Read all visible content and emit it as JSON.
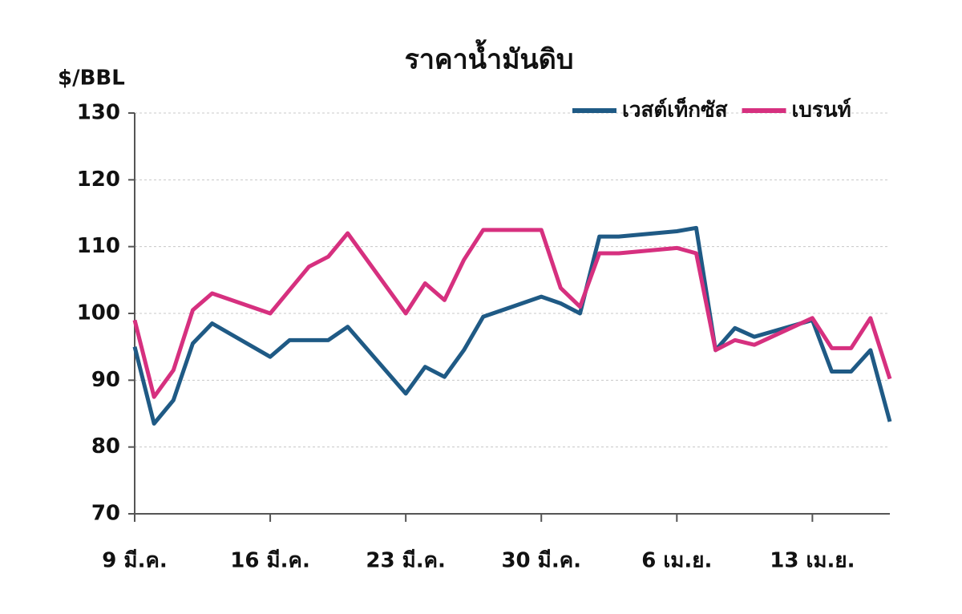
{
  "chart_data": {
    "type": "line",
    "title": "ราคาน้ำมันดิบ",
    "y_label": "$/BBL",
    "x": [
      0,
      1,
      2,
      3,
      4,
      7,
      8,
      9,
      10,
      11,
      14,
      15,
      16,
      17,
      18,
      21,
      22,
      23,
      24,
      25,
      28,
      29,
      30,
      31,
      32,
      35,
      36,
      37,
      38,
      39
    ],
    "xlim": [
      0,
      39
    ],
    "xticks": [
      {
        "value": 0,
        "label": "9 มี.ค."
      },
      {
        "value": 7,
        "label": "16 มี.ค."
      },
      {
        "value": 14,
        "label": "23 มี.ค."
      },
      {
        "value": 21,
        "label": "30 มี.ค."
      },
      {
        "value": 28,
        "label": "6 เม.ย."
      },
      {
        "value": 35,
        "label": "13 เม.ย."
      }
    ],
    "ylim": [
      70,
      130
    ],
    "yticks": [
      70,
      80,
      90,
      100,
      110,
      120,
      130
    ],
    "grid": true,
    "legend": "top-right",
    "series": [
      {
        "name": "เวสต์เท็กซัส",
        "color": "#1f5a85",
        "values": [
          95,
          83.5,
          87,
          95.5,
          98.5,
          93.5,
          96,
          96,
          96,
          98,
          88,
          92,
          90.5,
          94.5,
          99.5,
          102.5,
          101.5,
          100,
          111.5,
          111.5,
          112.3,
          112.8,
          94.5,
          97.8,
          96.5,
          99,
          91.3,
          91.3,
          94.5,
          83.8
        ]
      },
      {
        "name": "เบรนท์",
        "color": "#d6307f",
        "values": [
          99,
          87.5,
          91.5,
          100.5,
          103,
          100,
          103.5,
          107,
          108.5,
          112,
          100,
          104.5,
          102,
          108,
          112.5,
          112.5,
          103.8,
          101,
          109,
          109,
          109.8,
          109,
          94.5,
          96,
          95.3,
          99.3,
          94.8,
          94.8,
          99.3,
          90.2
        ]
      }
    ]
  }
}
